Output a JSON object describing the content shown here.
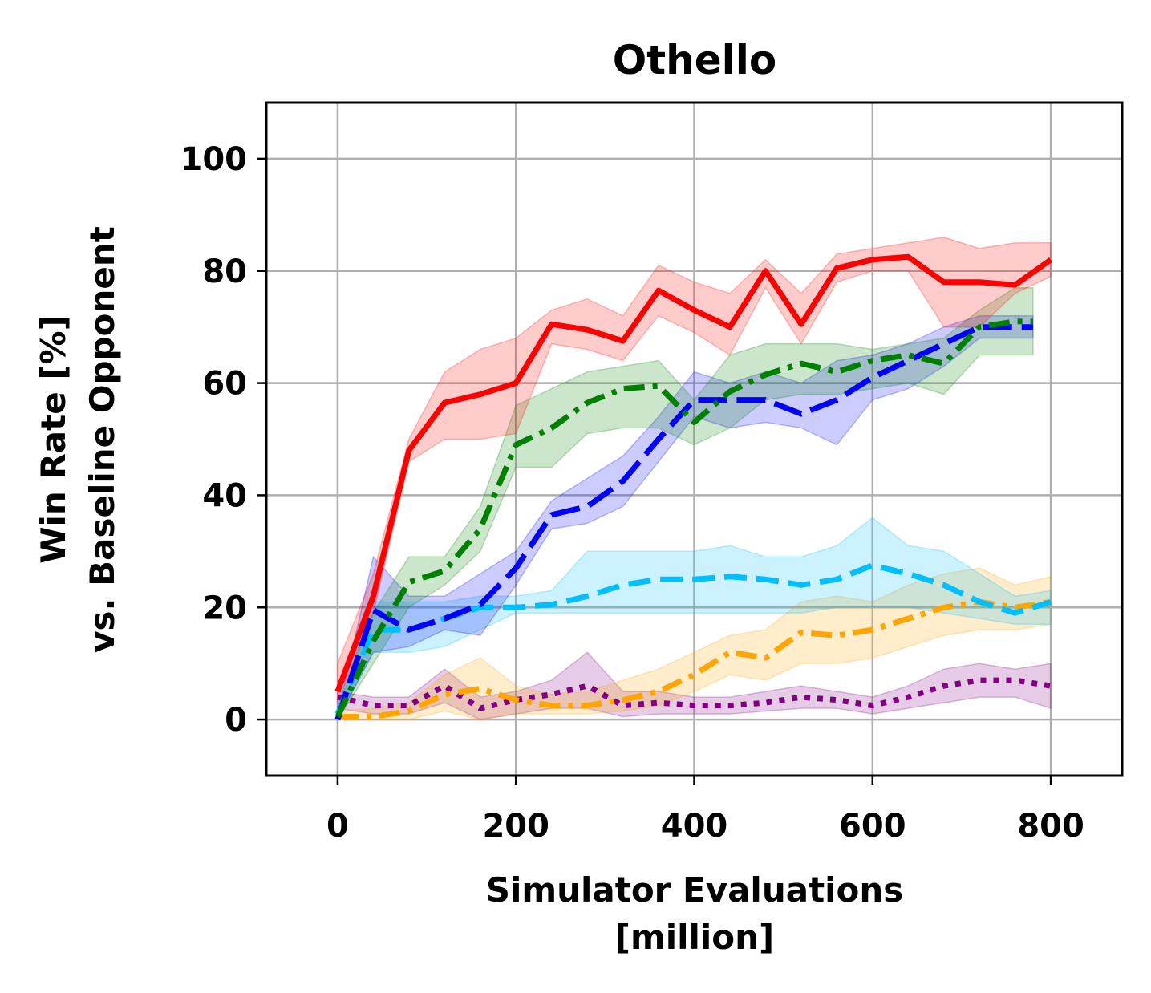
{
  "chart_data": {
    "type": "line",
    "title": "Othello",
    "xlabel_lines": [
      "Simulator Evaluations",
      "[million]"
    ],
    "ylabel_lines": [
      "Win Rate [%]",
      "vs. Baseline Opponent"
    ],
    "xlim": [
      -80,
      880
    ],
    "ylim": [
      -10,
      110
    ],
    "xticks": [
      0,
      200,
      400,
      600,
      800
    ],
    "yticks": [
      0,
      20,
      40,
      60,
      80,
      100
    ],
    "grid": true,
    "series": [
      {
        "name": "purple-dotted",
        "color": "#800080",
        "dash": "dotted",
        "x": [
          0,
          40,
          80,
          120,
          160,
          200,
          240,
          280,
          320,
          360,
          400,
          440,
          480,
          520,
          560,
          600,
          640,
          680,
          720,
          760,
          800
        ],
        "values": [
          4,
          2.5,
          2.5,
          6,
          2,
          3.5,
          4.5,
          6,
          2.5,
          3,
          2.5,
          2.5,
          3,
          4,
          3.5,
          2.5,
          4,
          6,
          7,
          7,
          6
        ],
        "lower": [
          2,
          1,
          1,
          3,
          0,
          1,
          2,
          2,
          0.5,
          1,
          1,
          1,
          1.5,
          2,
          2,
          1,
          2,
          3,
          4,
          4,
          2
        ],
        "upper": [
          5,
          4,
          4,
          9,
          4,
          5,
          7,
          12,
          5,
          5,
          4,
          4,
          5,
          6,
          5,
          4,
          6,
          9,
          10,
          9,
          10
        ]
      },
      {
        "name": "orange-dashdot",
        "color": "#ffa500",
        "dash": "dashdot",
        "x": [
          0,
          40,
          80,
          120,
          160,
          200,
          240,
          280,
          320,
          360,
          400,
          440,
          480,
          520,
          560,
          600,
          640,
          680,
          720,
          760,
          800
        ],
        "values": [
          0.5,
          0.5,
          1.5,
          4.5,
          5.5,
          3.5,
          2.5,
          2.5,
          3.5,
          5,
          8,
          12,
          11,
          15.5,
          15,
          16,
          18,
          20,
          21,
          20,
          21
        ],
        "lower": [
          0,
          0,
          0,
          1.5,
          0,
          1,
          1,
          1,
          1.5,
          2.5,
          5,
          8,
          7,
          10,
          10,
          11,
          13,
          15,
          16,
          16,
          17
        ],
        "upper": [
          1.5,
          2,
          3,
          8,
          11,
          6,
          4.5,
          5,
          7,
          9,
          12,
          15,
          16,
          21,
          22,
          21,
          24,
          26,
          27,
          24,
          25.5
        ]
      },
      {
        "name": "cyan-dashed",
        "color": "#00bfff",
        "dash": "dashed",
        "x": [
          0,
          40,
          80,
          120,
          160,
          200,
          240,
          280,
          320,
          360,
          400,
          440,
          480,
          520,
          560,
          600,
          640,
          680,
          720,
          760,
          800
        ],
        "values": [
          1,
          16,
          16,
          18,
          20,
          20,
          20.5,
          22,
          24,
          25,
          25,
          25.5,
          25,
          24,
          25,
          27.5,
          26,
          24,
          21,
          19,
          21
        ],
        "lower": [
          0,
          12,
          12,
          13,
          16,
          19,
          19,
          19,
          19,
          19,
          19,
          19,
          19,
          19,
          20,
          20,
          20,
          19,
          18,
          17,
          17
        ],
        "upper": [
          2,
          21,
          21,
          21,
          22,
          22,
          23,
          30,
          30,
          30,
          30,
          31,
          29,
          29,
          31,
          36,
          31,
          30,
          26,
          22,
          23
        ]
      },
      {
        "name": "blue-dashed",
        "color": "#0000ff",
        "dash": "longdash",
        "x": [
          0,
          40,
          80,
          120,
          160,
          200,
          240,
          280,
          320,
          360,
          400,
          440,
          480,
          520,
          560,
          600,
          640,
          680,
          720,
          760,
          780
        ],
        "values": [
          0,
          19.5,
          16,
          18,
          20.5,
          27,
          36.5,
          38,
          42.5,
          50,
          57,
          57,
          57,
          54.5,
          57,
          61,
          64,
          67,
          70,
          70,
          70
        ],
        "lower": [
          0,
          12,
          13,
          16,
          15,
          24,
          34,
          35,
          38,
          46,
          54,
          52,
          53,
          52,
          49,
          57,
          59,
          63,
          68,
          68,
          68
        ],
        "upper": [
          1,
          29,
          22,
          22,
          26,
          30,
          39,
          43,
          47,
          54,
          62,
          60,
          62,
          60,
          64,
          65,
          67,
          70,
          72,
          72,
          72
        ]
      },
      {
        "name": "green-dashdot",
        "color": "#008000",
        "dash": "dashdot",
        "x": [
          0,
          40,
          80,
          120,
          160,
          200,
          240,
          280,
          320,
          360,
          400,
          440,
          480,
          520,
          560,
          600,
          640,
          680,
          720,
          760,
          780
        ],
        "values": [
          0.5,
          14,
          24.5,
          26.5,
          34,
          49,
          52,
          56.5,
          59,
          59.5,
          53,
          58.5,
          61.5,
          63.5,
          62,
          64,
          65,
          63.5,
          70,
          71,
          71
        ],
        "lower": [
          0,
          10,
          20,
          24,
          30,
          45,
          45,
          51,
          52,
          52,
          49,
          52,
          57,
          58,
          58,
          59,
          60,
          58,
          65,
          65,
          65
        ],
        "upper": [
          2,
          19,
          29,
          29,
          38,
          56,
          59,
          62,
          63,
          64,
          57,
          65,
          67,
          67,
          67,
          66,
          67,
          68,
          73,
          77,
          77
        ]
      },
      {
        "name": "red-solid",
        "color": "#ff0000",
        "dash": "solid",
        "x": [
          0,
          40,
          80,
          120,
          160,
          200,
          240,
          280,
          320,
          360,
          400,
          440,
          480,
          520,
          560,
          600,
          640,
          680,
          720,
          760,
          800
        ],
        "values": [
          5,
          22,
          48,
          56.5,
          58,
          60,
          70.5,
          69.5,
          67.5,
          76.5,
          73,
          70,
          80,
          70.5,
          80.5,
          82,
          82.5,
          78,
          78,
          77.5,
          82
        ],
        "lower": [
          3,
          19,
          46,
          50,
          50,
          51,
          67,
          66,
          64,
          72,
          69,
          65,
          77,
          67,
          78,
          80,
          80,
          70,
          70,
          76,
          79
        ],
        "upper": [
          10,
          26,
          50,
          62,
          66,
          68,
          73,
          75,
          72,
          81,
          78,
          76,
          82,
          76,
          83,
          84,
          85,
          86,
          84,
          85,
          85
        ]
      }
    ]
  }
}
